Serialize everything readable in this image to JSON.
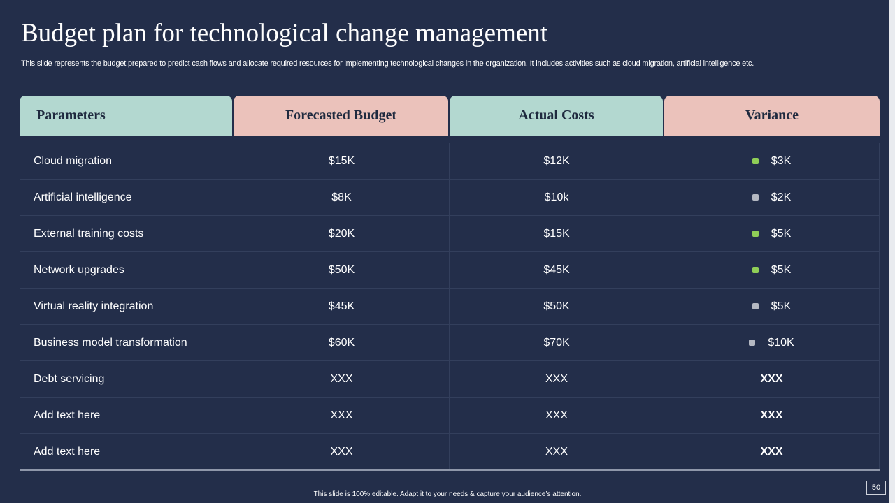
{
  "title": "Budget plan for technological change management",
  "subtitle": "This slide represents the budget prepared to predict cash flows and allocate required resources for implementing technological  changes in the organization. It includes activities such as cloud migration, artificial intelligence etc.",
  "colors": {
    "background": "#232e4a",
    "header_teal": "#b3d8d0",
    "header_pink": "#ebc2bb",
    "indicator_green": "#8fce57",
    "indicator_gray": "#b4b8c2"
  },
  "table": {
    "headers": [
      "Parameters",
      "Forecasted Budget",
      "Actual Costs",
      "Variance"
    ],
    "rows": [
      {
        "parameter": "Cloud migration",
        "forecast": "$15K",
        "actual": "$12K",
        "variance": "$3K",
        "indicator": "green"
      },
      {
        "parameter": "Artificial intelligence",
        "forecast": "$8K",
        "actual": "$10k",
        "variance": "$2K",
        "indicator": "gray"
      },
      {
        "parameter": "External training costs",
        "forecast": "$20K",
        "actual": "$15K",
        "variance": "$5K",
        "indicator": "green"
      },
      {
        "parameter": "Network upgrades",
        "forecast": "$50K",
        "actual": "$45K",
        "variance": "$5K",
        "indicator": "green"
      },
      {
        "parameter": "Virtual reality integration",
        "forecast": "$45K",
        "actual": "$50K",
        "variance": "$5K",
        "indicator": "gray"
      },
      {
        "parameter": "Business model transformation",
        "forecast": "$60K",
        "actual": "$70K",
        "variance": "$10K",
        "indicator": "gray"
      },
      {
        "parameter": "Debt servicing",
        "forecast": "XXX",
        "actual": "XXX",
        "variance": "XXX",
        "indicator": "none"
      },
      {
        "parameter": "Add text here",
        "forecast": "XXX",
        "actual": "XXX",
        "variance": "XXX",
        "indicator": "none"
      },
      {
        "parameter": "Add text here",
        "forecast": "XXX",
        "actual": "XXX",
        "variance": "XXX",
        "indicator": "none"
      }
    ]
  },
  "footer": "This slide is 100% editable.  Adapt it to your needs & capture your audience’s attention.",
  "page_number": "50"
}
